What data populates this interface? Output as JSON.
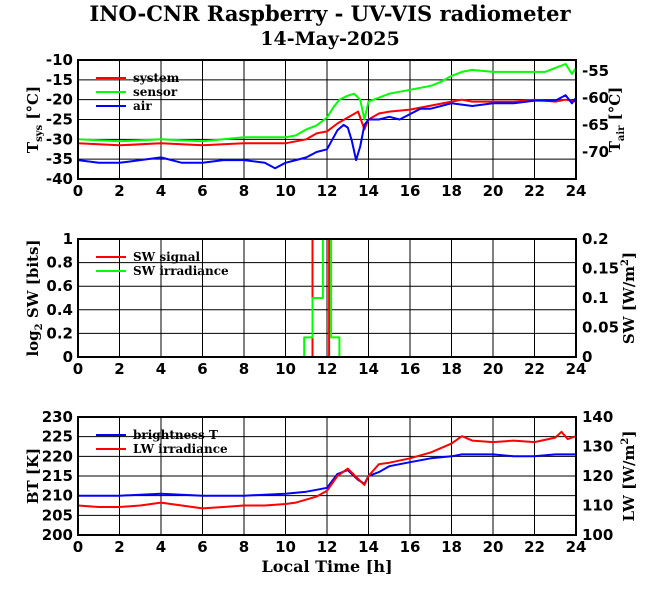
{
  "header": {
    "title": "INO-CNR Raspberry - UV-VIS radiometer",
    "date": "14-May-2025"
  },
  "chart_data": [
    {
      "type": "line",
      "xlabel": "",
      "xlim": [
        0,
        24
      ],
      "xticks": [
        0,
        2,
        4,
        6,
        8,
        10,
        12,
        14,
        16,
        18,
        20,
        22,
        24
      ],
      "ylabel": "T_sys [°C]",
      "ylim": [
        -40,
        -10
      ],
      "yticks": [
        -40,
        -35,
        -30,
        -25,
        -20,
        -15,
        -10
      ],
      "y2label": "T_air [°C]",
      "y2lim": [
        -75,
        -53
      ],
      "y2ticks": [
        -70,
        -65,
        -60,
        -55
      ],
      "grid": true,
      "legend_position": "top-left",
      "series": [
        {
          "name": "system",
          "axis": "left",
          "color": "#ff0000",
          "x": [
            0,
            2,
            4,
            6,
            8,
            9,
            10,
            10.5,
            11,
            11.5,
            12,
            12.5,
            13,
            13.5,
            13.8,
            14,
            14.5,
            15,
            16,
            17,
            18,
            18.5,
            19,
            20,
            21,
            22,
            23,
            23.5,
            24
          ],
          "y": [
            -31,
            -31.5,
            -31,
            -31.5,
            -31,
            -31,
            -31,
            -30.5,
            -30,
            -28.5,
            -28,
            -26,
            -24.5,
            -23,
            -27.5,
            -25,
            -23.5,
            -23,
            -22.5,
            -21.5,
            -20.5,
            -20,
            -20.5,
            -20.5,
            -20.5,
            -20,
            -20.5,
            -20,
            -20.5
          ]
        },
        {
          "name": "sensor",
          "axis": "left",
          "color": "#00ff00",
          "x": [
            0,
            2,
            4,
            6,
            7,
            8,
            9,
            10,
            10.5,
            11,
            11.5,
            12,
            12.3,
            12.6,
            13,
            13.3,
            13.6,
            13.8,
            14,
            14.5,
            15,
            16,
            17,
            17.5,
            18,
            18.5,
            19,
            20,
            21,
            22,
            22.5,
            23,
            23.5,
            23.8,
            24
          ],
          "y": [
            -30,
            -30.5,
            -30,
            -30.5,
            -30,
            -29.5,
            -29.5,
            -29.5,
            -29,
            -27.5,
            -26.5,
            -24.5,
            -22,
            -20,
            -19,
            -18.5,
            -20,
            -25,
            -20.5,
            -19.5,
            -18.5,
            -17.5,
            -16.5,
            -15.5,
            -14,
            -13,
            -12.5,
            -13,
            -13,
            -13,
            -13,
            -12,
            -11,
            -13.5,
            -12
          ]
        },
        {
          "name": "air",
          "axis": "right",
          "color": "#0000ff",
          "x": [
            0,
            1,
            2,
            3,
            4,
            5,
            6,
            7,
            8,
            9,
            9.5,
            10,
            10.5,
            11,
            11.5,
            12,
            12.5,
            12.8,
            13,
            13.2,
            13.4,
            13.6,
            13.8,
            14,
            14.5,
            15,
            15.5,
            16,
            16.5,
            17,
            18,
            19,
            20,
            21,
            22,
            23,
            23.5,
            23.8,
            24
          ],
          "y": [
            -71.5,
            -72,
            -72,
            -71.5,
            -71,
            -72,
            -72,
            -71.5,
            -71.5,
            -72,
            -73,
            -72,
            -71.5,
            -71,
            -70,
            -69.5,
            -66,
            -65,
            -65.5,
            -68,
            -71.5,
            -69,
            -65,
            -64,
            -64,
            -63.5,
            -64,
            -63,
            -62,
            -62,
            -61,
            -61.5,
            -61,
            -61,
            -60.5,
            -60.5,
            -59.5,
            -61,
            -60
          ]
        }
      ]
    },
    {
      "type": "line",
      "xlabel": "",
      "xlim": [
        0,
        24
      ],
      "xticks": [
        0,
        2,
        4,
        6,
        8,
        10,
        12,
        14,
        16,
        18,
        20,
        22,
        24
      ],
      "ylabel": "log2 SW [bits]",
      "ylim": [
        0,
        1
      ],
      "yticks": [
        0,
        0.2,
        0.4,
        0.6,
        0.8,
        1
      ],
      "y2label": "SW [W/m2]",
      "y2lim": [
        0,
        0.2
      ],
      "y2ticks": [
        0,
        0.05,
        0.1,
        0.15,
        0.2
      ],
      "grid": true,
      "legend_position": "top-left",
      "series": [
        {
          "name": "SW signal",
          "axis": "left",
          "color": "#ff0000",
          "x": [
            0,
            11.3,
            11.3,
            12.1,
            12.1,
            24
          ],
          "y": [
            0,
            0,
            1,
            1,
            0,
            0
          ]
        },
        {
          "name": "SW irradiance",
          "axis": "right",
          "color": "#00ff00",
          "x": [
            0,
            10.9,
            10.9,
            11.3,
            11.3,
            11.8,
            11.8,
            12.2,
            12.2,
            12.6,
            12.6,
            24
          ],
          "y": [
            0,
            0,
            0.0333,
            0.0333,
            0.1,
            0.1,
            0.2,
            0.2,
            0.0333,
            0.0333,
            0,
            0
          ]
        }
      ]
    },
    {
      "type": "line",
      "xlabel": "Local Time [h]",
      "xlim": [
        0,
        24
      ],
      "xticks": [
        0,
        2,
        4,
        6,
        8,
        10,
        12,
        14,
        16,
        18,
        20,
        22,
        24
      ],
      "ylabel": "BT [K]",
      "ylim": [
        200,
        230
      ],
      "yticks": [
        200,
        205,
        210,
        215,
        220,
        225,
        230
      ],
      "y2label": "LW [W/m2]",
      "y2lim": [
        100,
        140
      ],
      "y2ticks": [
        100,
        110,
        120,
        130,
        140
      ],
      "grid": true,
      "legend_position": "top-left",
      "series": [
        {
          "name": "brightness T",
          "axis": "left",
          "color": "#0000ff",
          "x": [
            0,
            2,
            4,
            6,
            8,
            10,
            11,
            11.5,
            12,
            12.5,
            13,
            13.5,
            13.8,
            14,
            14.5,
            15,
            16,
            17,
            18,
            18.5,
            19,
            20,
            21,
            22,
            23,
            23.5,
            24
          ],
          "y": [
            210,
            210,
            210.5,
            210,
            210,
            210.5,
            211,
            211.5,
            212,
            215.5,
            216.5,
            214,
            213,
            215,
            216,
            217.5,
            218.5,
            219.5,
            220,
            220.5,
            220.5,
            220.5,
            220,
            220,
            220.5,
            220.5,
            220.5
          ]
        },
        {
          "name": "LW irradiance",
          "axis": "right",
          "color": "#ff0000",
          "x": [
            0,
            1,
            2,
            3,
            4,
            5,
            6,
            7,
            8,
            9,
            10,
            10.5,
            11,
            11.5,
            12,
            12.5,
            13,
            13.5,
            13.8,
            14,
            14.5,
            15,
            16,
            17,
            18,
            18.5,
            19,
            20,
            21,
            22,
            23,
            23.3,
            23.6,
            24
          ],
          "y": [
            110,
            109.5,
            109.5,
            110,
            111,
            110,
            109,
            109.5,
            110,
            110,
            110.5,
            111,
            112,
            113,
            115,
            120,
            122.5,
            119,
            117,
            120,
            124,
            124.5,
            126,
            128,
            131,
            133.5,
            132,
            131.5,
            132,
            131.5,
            133,
            135,
            132.5,
            133.5
          ]
        }
      ]
    }
  ]
}
